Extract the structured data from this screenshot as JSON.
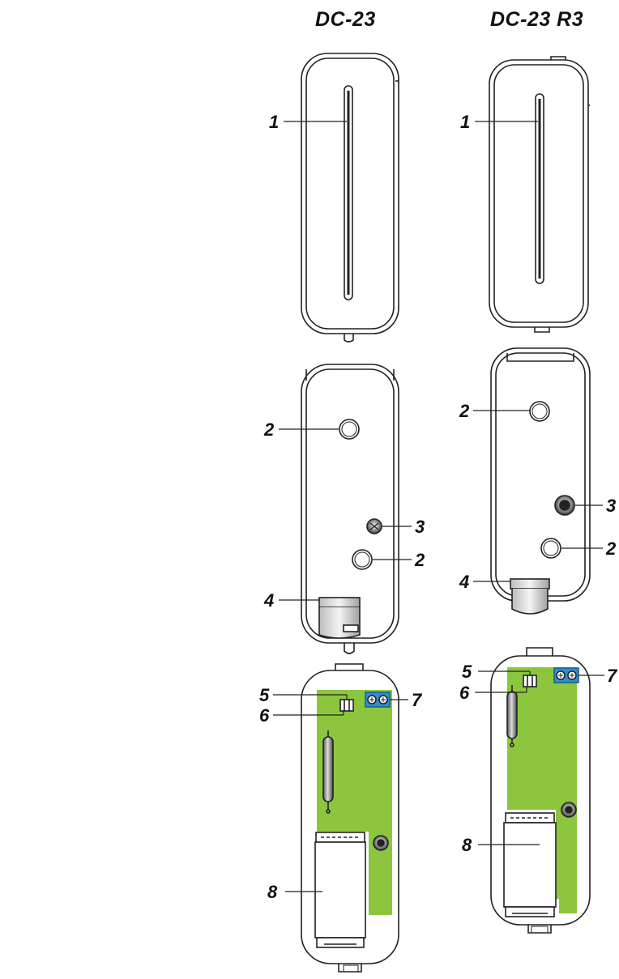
{
  "columns": {
    "left_title": "DC-23",
    "right_title": "DC-23 R3"
  },
  "callouts": {
    "n1": "1",
    "n2": "2",
    "n3": "3",
    "n4": "4",
    "n5": "5",
    "n6": "6",
    "n7": "7",
    "n8": "8"
  },
  "colors": {
    "outline": "#222222",
    "pcb_green": "#8cc63f",
    "terminal_blue": "#2e8fd0",
    "battery_gray": "#ffffff",
    "background": "#ffffff"
  }
}
